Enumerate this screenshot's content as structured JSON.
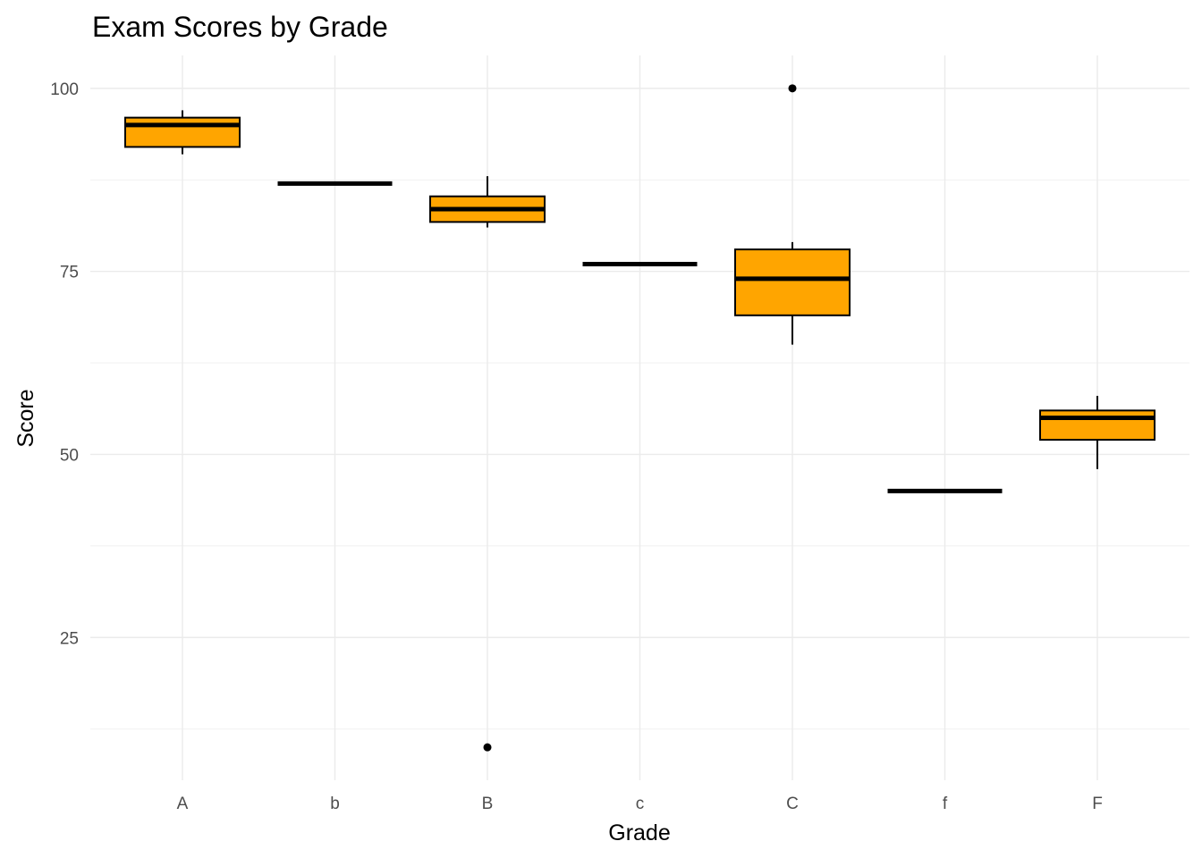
{
  "chart_data": {
    "type": "boxplot",
    "title": "Exam Scores by Grade",
    "xlabel": "Grade",
    "ylabel": "Score",
    "categories": [
      "A",
      "b",
      "B",
      "c",
      "C",
      "f",
      "F"
    ],
    "ylim": [
      5.5,
      104.5
    ],
    "yticks": [
      25,
      50,
      75,
      100
    ],
    "grid": true,
    "fill_color": "#FFA500",
    "boxes": [
      {
        "category": "A",
        "whisker_low": 91,
        "q1": 92,
        "median": 95,
        "q3": 96,
        "whisker_high": 97,
        "outliers": []
      },
      {
        "category": "b",
        "whisker_low": 87,
        "q1": 87,
        "median": 87,
        "q3": 87,
        "whisker_high": 87,
        "outliers": []
      },
      {
        "category": "B",
        "whisker_low": 81,
        "q1": 81.75,
        "median": 83.5,
        "q3": 85.25,
        "whisker_high": 88,
        "outliers": [
          10
        ]
      },
      {
        "category": "c",
        "whisker_low": 76,
        "q1": 76,
        "median": 76,
        "q3": 76,
        "whisker_high": 76,
        "outliers": []
      },
      {
        "category": "C",
        "whisker_low": 65,
        "q1": 69,
        "median": 74,
        "q3": 78,
        "whisker_high": 79,
        "outliers": [
          100
        ]
      },
      {
        "category": "f",
        "whisker_low": 45,
        "q1": 45,
        "median": 45,
        "q3": 45,
        "whisker_high": 45,
        "outliers": []
      },
      {
        "category": "F",
        "whisker_low": 48,
        "q1": 52,
        "median": 55,
        "q3": 56,
        "whisker_high": 58,
        "outliers": []
      }
    ]
  }
}
